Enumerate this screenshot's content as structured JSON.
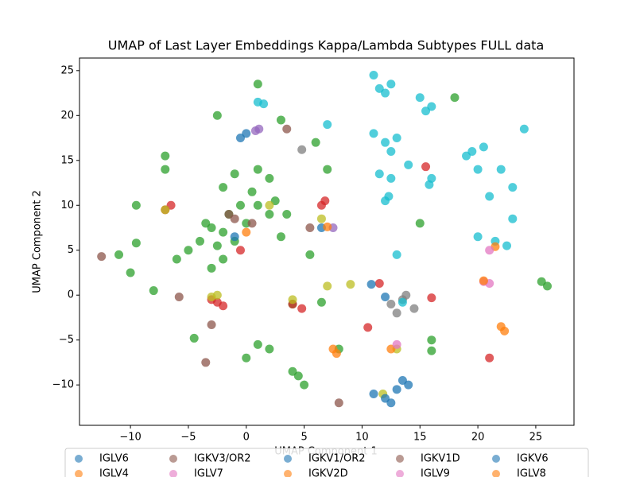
{
  "chart_data": {
    "type": "scatter",
    "title": "UMAP of Last Layer Embeddings Kappa/Lambda Subtypes FULL data",
    "xlabel": "UMAP Component 1",
    "ylabel": "UMAP Component 2",
    "xlim": [
      -14.4,
      28.3
    ],
    "ylim": [
      -14.5,
      26.4
    ],
    "xticks": [
      {
        "value": -10,
        "label": "−10"
      },
      {
        "value": -5,
        "label": "−5"
      },
      0,
      5,
      10,
      15,
      20,
      25
    ],
    "yticks": [
      {
        "value": -10,
        "label": "−10"
      },
      {
        "value": -5,
        "label": "−5"
      },
      0,
      5,
      10,
      15,
      20,
      25
    ],
    "legend": "bottom",
    "series": [
      {
        "name": null,
        "color": "#2ca02c",
        "x": [
          -2,
          -1,
          -3,
          -2.5,
          -1.5,
          -0.5,
          0,
          1,
          0.5,
          2,
          2.5,
          3.5,
          -4,
          -3.5,
          -2,
          -5,
          -3,
          -9.5,
          -7,
          -10,
          2,
          0,
          1,
          4,
          5,
          4.5,
          25.5,
          26,
          -9.5,
          1,
          7,
          -7,
          -2.5,
          1,
          18,
          3,
          6,
          -2,
          -4.5,
          -8,
          -11,
          16,
          16,
          15,
          2,
          -6,
          -1,
          3,
          5.5,
          4,
          6.5,
          8
        ],
        "values": [
          7,
          6,
          7.5,
          5.5,
          9,
          10,
          8,
          10,
          11.5,
          9,
          10.5,
          9,
          6,
          8,
          4,
          5,
          3,
          5.8,
          14,
          2.5,
          -6,
          -7,
          -5.5,
          -8.5,
          -10,
          -9,
          1.5,
          1,
          10,
          14,
          14,
          15.5,
          20,
          23.5,
          22,
          19.5,
          17,
          12,
          -4.8,
          0.5,
          4.5,
          -5,
          -6.2,
          8,
          13,
          4,
          13.5,
          6.5,
          4.5,
          -1,
          -0.8,
          -6
        ]
      },
      {
        "name": null,
        "color": "#d62728",
        "x": [
          -7,
          -6.5,
          -2.5,
          -3,
          -2,
          4.8,
          4,
          6.5,
          21,
          16,
          10.5,
          11.5,
          -0.5,
          15.5,
          6.8
        ],
        "values": [
          9.5,
          10,
          -0.8,
          -0.5,
          -1.2,
          -1.5,
          -1,
          10,
          -7,
          -0.3,
          -3.6,
          1.3,
          5,
          14.3,
          10.5
        ]
      },
      {
        "name": null,
        "color": "#9467bd",
        "x": [
          0.8,
          1.1,
          7.5
        ],
        "values": [
          18.3,
          18.5,
          7.5
        ]
      },
      {
        "name": null,
        "color": "#7f7f7f",
        "x": [
          13.5,
          12.5,
          14.5,
          13.8,
          13,
          4.8
        ],
        "values": [
          -0.5,
          -1,
          -1.5,
          0,
          -2,
          16.2
        ]
      },
      {
        "name": null,
        "color": "#bcbd22",
        "x": [
          -2.5,
          4,
          7,
          9,
          -7,
          6.5,
          2,
          13,
          11.8,
          -3
        ],
        "values": [
          0,
          -0.5,
          1,
          1.2,
          9.5,
          8.5,
          10,
          -6,
          -11,
          -0.2
        ]
      },
      {
        "name": null,
        "color": "#17becf",
        "x": [
          11.5,
          12,
          12.5,
          16,
          15.5,
          15,
          12,
          12.5,
          11,
          13,
          19.5,
          20,
          19,
          20.5,
          11.5,
          12.5,
          12,
          12.3,
          15.8,
          20,
          21.5,
          22.5,
          13,
          23,
          14,
          13.5,
          1,
          1.5,
          7,
          24,
          21,
          16,
          11,
          22,
          23
        ],
        "values": [
          23,
          22.5,
          23.5,
          21,
          20.5,
          22,
          17,
          16,
          18,
          17.5,
          16,
          14,
          15.5,
          16.5,
          13.5,
          13,
          10.5,
          11,
          12.3,
          6.5,
          6,
          5.5,
          4.5,
          8.5,
          14.5,
          -0.8,
          21.5,
          21.3,
          19,
          18.5,
          11,
          13,
          24.5,
          14,
          12
        ]
      },
      {
        "name": "IGLV6",
        "color": "#1f77b4",
        "x": [
          0,
          -0.5,
          13,
          12,
          14
        ],
        "values": [
          18,
          17.5,
          -10.5,
          -11.5,
          -10
        ]
      },
      {
        "name": "IGLV4",
        "color": "#ff7f0e",
        "x": [
          22,
          22.3,
          21.5
        ],
        "values": [
          -3.5,
          -4,
          5.4
        ]
      },
      {
        "name": "IGKV3/OR2",
        "color": "#8c564b",
        "x": [
          -1,
          0.5,
          3.5,
          -12.5,
          -1.5
        ],
        "values": [
          8.5,
          8,
          18.5,
          4.3,
          9
        ]
      },
      {
        "name": "IGLV7",
        "color": "#e377c2",
        "x": [
          20.5,
          21
        ],
        "values": [
          1.5,
          1.3
        ]
      },
      {
        "name": "IGKV1/OR2",
        "color": "#1f77b4",
        "x": [
          11,
          13.5,
          12.5
        ],
        "values": [
          -11,
          -9.5,
          -12
        ]
      },
      {
        "name": "IGKV2D",
        "color": "#ff7f0e",
        "x": [
          7.5,
          7.8,
          12.5
        ],
        "values": [
          -6,
          -6.5,
          -6
        ]
      },
      {
        "name": "IGKV1D",
        "color": "#8c564b",
        "x": [
          -3.5,
          -3,
          8,
          5.5,
          -5.8
        ],
        "values": [
          -7.5,
          -3.3,
          -12,
          7.5,
          -0.2
        ]
      },
      {
        "name": "IGLV9",
        "color": "#e377c2",
        "x": [
          21,
          13
        ],
        "values": [
          5,
          -5.5
        ]
      },
      {
        "name": "IGKV6",
        "color": "#1f77b4",
        "x": [
          6.5,
          12,
          10.8,
          -1
        ],
        "values": [
          7.5,
          -0.2,
          1.2,
          6.5
        ]
      },
      {
        "name": "IGLV8",
        "color": "#ff7f0e",
        "x": [
          0,
          20.5,
          7
        ],
        "values": [
          7,
          1.6,
          7.6
        ]
      }
    ]
  }
}
